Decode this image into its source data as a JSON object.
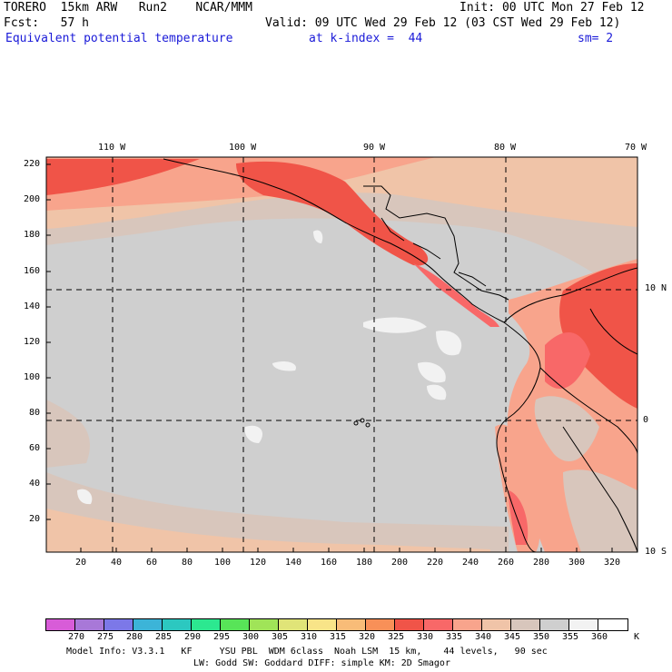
{
  "header": {
    "model": "TORERO  15km ARW   Run2    NCAR/MMM",
    "init": "Init: 00 UTC Mon 27 Feb 12",
    "fcst": "Fcst:   57 h",
    "valid": "Valid: 09 UTC Wed 29 Feb 12 (03 CST Wed 29 Feb 12)",
    "field": "Equivalent potential temperature",
    "kindex": "at k-index =  44",
    "sm": "sm= 2"
  },
  "map": {
    "top_lon_labels": [
      "110 W",
      "100 W",
      "90 W",
      "80 W",
      "70 W"
    ],
    "right_lat_labels": [
      "10 N",
      "0",
      "10 S"
    ],
    "y_ticks": [
      "220",
      "200",
      "180",
      "160",
      "140",
      "120",
      "100",
      "80",
      "60",
      "40",
      "20"
    ],
    "x_ticks": [
      "20",
      "40",
      "60",
      "80",
      "100",
      "120",
      "140",
      "160",
      "180",
      "200",
      "220",
      "240",
      "260",
      "280",
      "300",
      "320"
    ],
    "colors": {
      "c270": "#d85cd8",
      "c275": "#a878d8",
      "c280": "#7c78e8",
      "c285": "#3cb4d8",
      "c290": "#2cc8c0",
      "c295": "#2ce890",
      "c300": "#58e458",
      "c305": "#a0e458",
      "c310": "#e0e478",
      "c315": "#f8e488",
      "c320": "#f8bc78",
      "c325": "#f89058",
      "c330": "#f05448",
      "c335": "#f86868",
      "c340": "#f8a48c",
      "c345": "#f0c4a8",
      "c350": "#d8c6bc",
      "c355": "#cfcfcf",
      "c360": "#f2f2f2",
      "c365": "#ffffff"
    }
  },
  "colorbar": {
    "labels": [
      "270",
      "275",
      "280",
      "285",
      "290",
      "295",
      "300",
      "305",
      "310",
      "315",
      "320",
      "325",
      "330",
      "335",
      "340",
      "345",
      "350",
      "355",
      "360"
    ],
    "unit": "K"
  },
  "footer": {
    "line1": "Model Info: V3.3.1   KF     YSU PBL  WDM 6class  Noah LSM  15 km,    44 levels,   90 sec",
    "line2": "LW: Godd SW: Goddard DIFF: simple KM: 2D Smagor"
  }
}
